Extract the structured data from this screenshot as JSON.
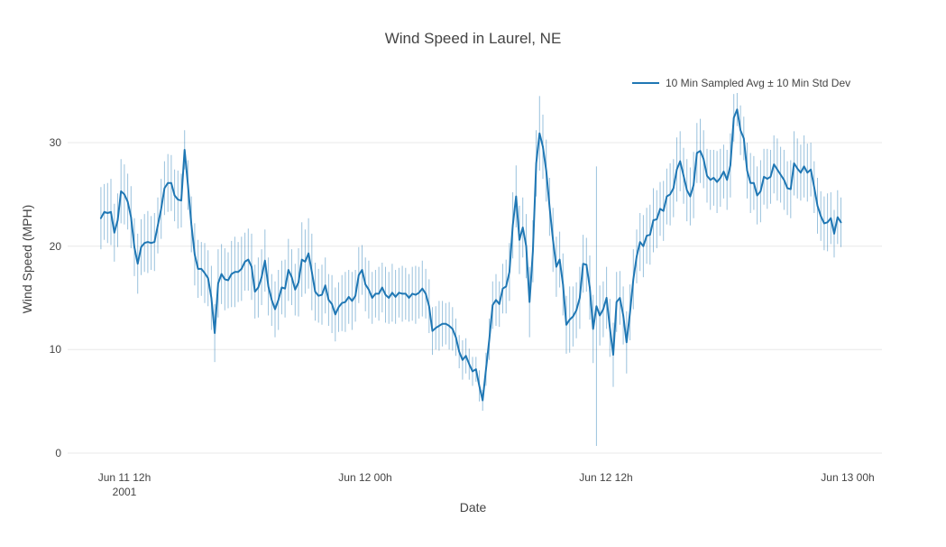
{
  "title": "Wind Speed in Laurel, NE",
  "legend": {
    "label": "10 Min Sampled Avg ± 10 Min Std Dev"
  },
  "colors": {
    "line": "#1f77b4",
    "error_bar": "rgba(31,119,180,0.45)",
    "grid": "#e8e8e8",
    "text": "#444444",
    "background": "#ffffff"
  },
  "chart_data": {
    "type": "line",
    "title": "Wind Speed in Laurel, NE",
    "xlabel": "Date",
    "ylabel": "Wind Speed (MPH)",
    "x_start": "2001-06-11 10:50",
    "x_step_minutes": 10,
    "ylim": [
      0,
      38
    ],
    "grid": "horizontal-only",
    "legend_position": "top-right",
    "y_ticks": [
      "0",
      "10",
      "20",
      "30"
    ],
    "y_tick_values": [
      0,
      10,
      20,
      30
    ],
    "x_ticks": [
      "Jun 11 12h",
      "Jun 12 00h",
      "Jun 12 12h",
      "Jun 13 00h"
    ],
    "x_tick_year": "2001",
    "x_tick_step_index": [
      7.0,
      79.0,
      151.1,
      223.1
    ],
    "series_name": "10 Min Sampled Avg",
    "error_series_name": "10 Min Std Dev",
    "values": [
      22.7,
      23.3,
      23.2,
      23.3,
      21.3,
      22.5,
      25.3,
      25.0,
      24.3,
      22.8,
      19.9,
      18.3,
      19.9,
      20.3,
      20.4,
      20.3,
      20.4,
      22.0,
      23.6,
      25.6,
      26.1,
      26.1,
      24.9,
      24.5,
      24.4,
      29.3,
      25.9,
      22.1,
      19.2,
      17.8,
      17.8,
      17.4,
      16.9,
      15.0,
      11.6,
      16.4,
      17.3,
      16.8,
      16.7,
      17.3,
      17.5,
      17.5,
      17.8,
      18.5,
      18.7,
      18.0,
      15.6,
      16.0,
      17.0,
      18.6,
      16.1,
      14.8,
      13.9,
      14.8,
      16.0,
      15.9,
      17.7,
      17.0,
      15.8,
      16.5,
      18.7,
      18.5,
      19.3,
      17.5,
      15.6,
      15.2,
      15.3,
      16.2,
      14.8,
      14.4,
      13.4,
      14.1,
      14.5,
      14.6,
      15.1,
      14.7,
      15.2,
      17.2,
      17.7,
      16.3,
      15.8,
      15.0,
      15.4,
      15.4,
      16.0,
      15.3,
      15.0,
      15.5,
      15.1,
      15.5,
      15.4,
      15.4,
      15.0,
      15.4,
      15.3,
      15.5,
      15.9,
      15.4,
      14.2,
      11.8,
      12.1,
      12.3,
      12.5,
      12.5,
      12.3,
      12.0,
      11.2,
      9.8,
      9.0,
      9.4,
      8.6,
      7.9,
      8.1,
      6.5,
      5.1,
      8.1,
      11.0,
      14.3,
      14.8,
      14.4,
      15.9,
      16.1,
      17.5,
      22.0,
      24.8,
      20.6,
      21.8,
      20.0,
      14.6,
      19.5,
      28.0,
      30.9,
      29.6,
      27.3,
      23.8,
      20.6,
      18.0,
      18.7,
      16.3,
      12.4,
      12.9,
      13.2,
      13.8,
      15.0,
      18.3,
      18.2,
      16.0,
      12.0,
      14.2,
      13.3,
      13.9,
      15.0,
      12.1,
      9.5,
      14.6,
      15.0,
      13.3,
      10.7,
      13.6,
      16.8,
      19.0,
      20.4,
      20.0,
      21.0,
      21.1,
      22.5,
      22.6,
      23.6,
      23.4,
      24.8,
      25.0,
      25.6,
      27.4,
      28.2,
      26.8,
      25.4,
      24.8,
      25.9,
      29.0,
      29.2,
      28.4,
      26.8,
      26.4,
      26.6,
      26.2,
      26.6,
      27.2,
      26.4,
      27.8,
      32.4,
      33.2,
      31.2,
      30.4,
      27.3,
      26.1,
      26.1,
      24.9,
      25.3,
      26.7,
      26.5,
      26.7,
      27.9,
      27.4,
      26.9,
      26.4,
      25.6,
      25.5,
      28.0,
      27.5,
      27.1,
      27.7,
      27.1,
      27.4,
      25.7,
      23.9,
      22.9,
      22.2,
      22.3,
      22.7,
      21.2,
      22.8,
      22.3
    ],
    "std": [
      3.0,
      2.7,
      2.9,
      3.2,
      2.8,
      2.6,
      3.1,
      2.9,
      2.7,
      3.0,
      2.8,
      2.9,
      2.7,
      2.8,
      3.0,
      2.6,
      2.8,
      2.7,
      2.9,
      2.6,
      2.8,
      2.7,
      2.5,
      2.8,
      2.6,
      1.9,
      2.4,
      2.7,
      3.0,
      2.8,
      2.6,
      2.9,
      2.7,
      3.1,
      2.8,
      3.3,
      2.9,
      3.0,
      2.7,
      3.2,
      3.4,
      2.9,
      3.1,
      2.8,
      3.0,
      3.2,
      2.6,
      2.9,
      2.7,
      3.0,
      2.8,
      2.5,
      2.7,
      2.9,
      2.6,
      2.8,
      3.0,
      2.7,
      2.5,
      3.3,
      3.6,
      3.1,
      3.4,
      3.7,
      2.8,
      2.6,
      2.9,
      2.7,
      2.5,
      2.8,
      2.6,
      2.4,
      2.7,
      2.9,
      2.6,
      2.8,
      2.5,
      2.7,
      2.4,
      2.6,
      2.8,
      2.5,
      2.3,
      2.6,
      2.4,
      2.7,
      2.5,
      2.8,
      2.6,
      2.4,
      2.7,
      2.5,
      2.3,
      2.6,
      2.8,
      2.5,
      2.7,
      2.4,
      2.6,
      2.3,
      2.1,
      2.4,
      2.2,
      2.0,
      2.3,
      2.1,
      1.8,
      1.6,
      1.9,
      1.7,
      1.5,
      1.4,
      1.2,
      1.5,
      1.0,
      1.6,
      2.0,
      2.3,
      2.5,
      2.2,
      2.4,
      2.6,
      2.8,
      3.2,
      3.0,
      3.3,
      2.9,
      3.1,
      3.4,
      3.0,
      3.2,
      3.6,
      3.1,
      3.0,
      2.8,
      3.1,
      2.9,
      2.7,
      3.0,
      2.8,
      3.2,
      2.9,
      2.7,
      3.0,
      2.8,
      2.6,
      3.1,
      3.3,
      13.5,
      2.9,
      2.7,
      3.0,
      2.8,
      3.1,
      2.9,
      2.6,
      2.8,
      3.0,
      2.7,
      2.9,
      2.6,
      2.8,
      3.0,
      2.7,
      2.9,
      3.1,
      2.8,
      2.6,
      2.9,
      2.7,
      3.0,
      2.8,
      3.1,
      2.9,
      2.7,
      3.0,
      2.8,
      3.2,
      2.9,
      3.1,
      2.8,
      2.6,
      2.9,
      2.7,
      3.0,
      2.8,
      2.6,
      2.9,
      3.1,
      2.3,
      1.6,
      2.4,
      2.1,
      2.7,
      2.9,
      2.6,
      2.8,
      3.0,
      2.7,
      2.9,
      2.6,
      2.8,
      3.0,
      2.7,
      2.9,
      2.6,
      2.8,
      3.1,
      2.9,
      2.7,
      3.0,
      2.8,
      2.6,
      2.5,
      2.7,
      2.4,
      2.6,
      2.8,
      2.5,
      2.3,
      2.6,
      2.4
    ]
  }
}
